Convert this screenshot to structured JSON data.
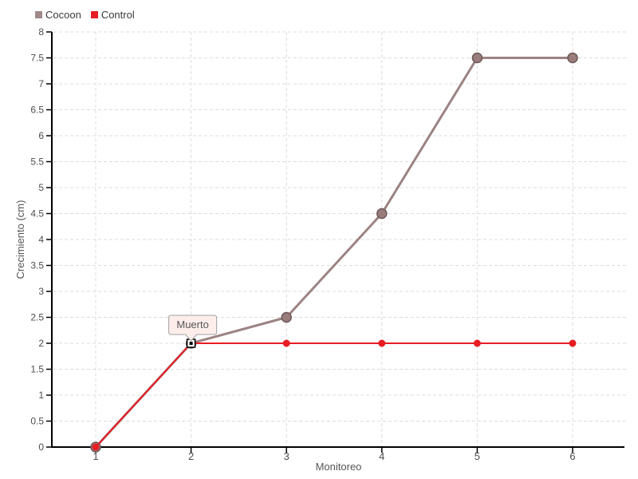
{
  "legend": {
    "items": [
      {
        "label": "Cocoon",
        "color": "#a18989"
      },
      {
        "label": "Control",
        "color": "#e81c23"
      }
    ]
  },
  "style": {
    "axis_color": "#000000",
    "grid_color": "#dcdcdc",
    "tick_label_color": "#4d4d4d",
    "axis_title_color": "#555555",
    "annotation_bg": "#fdeeec",
    "annotation_border": "#a0a0a0",
    "annotation_text_color": "#555555"
  },
  "chart_data": {
    "type": "line",
    "x": [
      1,
      2,
      3,
      4,
      5,
      6
    ],
    "series": [
      {
        "name": "Cocoon",
        "color": "#9c8383",
        "marker_fill": "#997d7d",
        "marker_stroke": "#6d5757",
        "line_width": 3,
        "marker_radius": 6,
        "values": [
          0,
          2,
          2.5,
          4.5,
          7.5,
          7.5
        ]
      },
      {
        "name": "Control",
        "color": "#e81c23",
        "marker_fill": "#e81c23",
        "marker_stroke": "none",
        "line_width": 2,
        "marker_radius": 4.5,
        "values": [
          0,
          2,
          2,
          2,
          2,
          2
        ]
      }
    ],
    "title": "",
    "xlabel": "Monitoreo",
    "ylabel": "Crecimiento (cm)",
    "xticks": [
      1,
      2,
      3,
      4,
      5,
      6
    ],
    "ylim": [
      0,
      8
    ],
    "ytick_step": 0.5,
    "grid": true,
    "legend_position": "top-left",
    "annotation": {
      "text": "Muerto",
      "x": 2,
      "y": 2,
      "marker": "white-square-black-dot"
    }
  }
}
